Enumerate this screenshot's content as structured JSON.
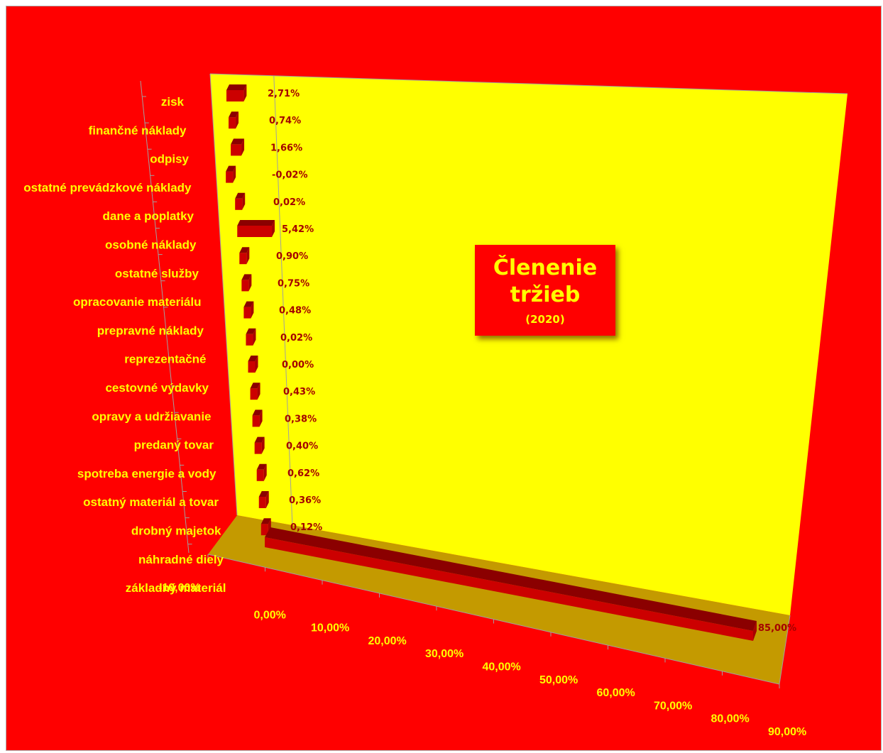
{
  "chart_data": {
    "type": "bar",
    "orientation": "horizontal",
    "three_d": true,
    "title": "Členenie tržieb",
    "subtitle": "(2020)",
    "categories": [
      "zisk",
      "finančné náklady",
      "odpisy",
      "ostatné prevádzkové náklady",
      "dane a poplatky",
      "osobné náklady",
      "ostatné služby",
      "opracovanie materiálu",
      "prepravné náklady",
      "reprezentačné",
      "cestovné výdavky",
      "opravy a udržiavanie",
      "predaný tovar",
      "spotreba energie a vody",
      "ostatný materiál a tovar",
      "drobný majetok",
      "náhradné diely",
      "základný materiál"
    ],
    "values": [
      2.71,
      0.74,
      1.66,
      -0.02,
      0.02,
      5.42,
      0.9,
      0.75,
      0.48,
      0.02,
      0.0,
      0.43,
      0.38,
      0.4,
      0.62,
      0.36,
      0.12,
      85.0
    ],
    "data_labels": [
      "2,71%",
      "0,74%",
      "1,66%",
      "-0,02%",
      "0,02%",
      "5,42%",
      "0,90%",
      "0,75%",
      "0,48%",
      "0,02%",
      "0,00%",
      "0,43%",
      "0,38%",
      "0,40%",
      "0,62%",
      "0,36%",
      "0,12%",
      "85,00%"
    ],
    "xlim": [
      -10,
      90
    ],
    "x_ticks": [
      "-10,00%",
      "0,00%",
      "10,00%",
      "20,00%",
      "30,00%",
      "40,00%",
      "50,00%",
      "60,00%",
      "70,00%",
      "80,00%",
      "90,00%"
    ],
    "xlabel": "",
    "ylabel": "",
    "legend": "none",
    "colors": {
      "background": "#ff0000",
      "back_wall": "#ffff00",
      "floor": "#c49a00",
      "bar_front": "#cc0000",
      "bar_top": "#8b0000",
      "bar_side": "#a80000",
      "axis_text": "#ffff00",
      "data_label": "#a40000"
    }
  }
}
